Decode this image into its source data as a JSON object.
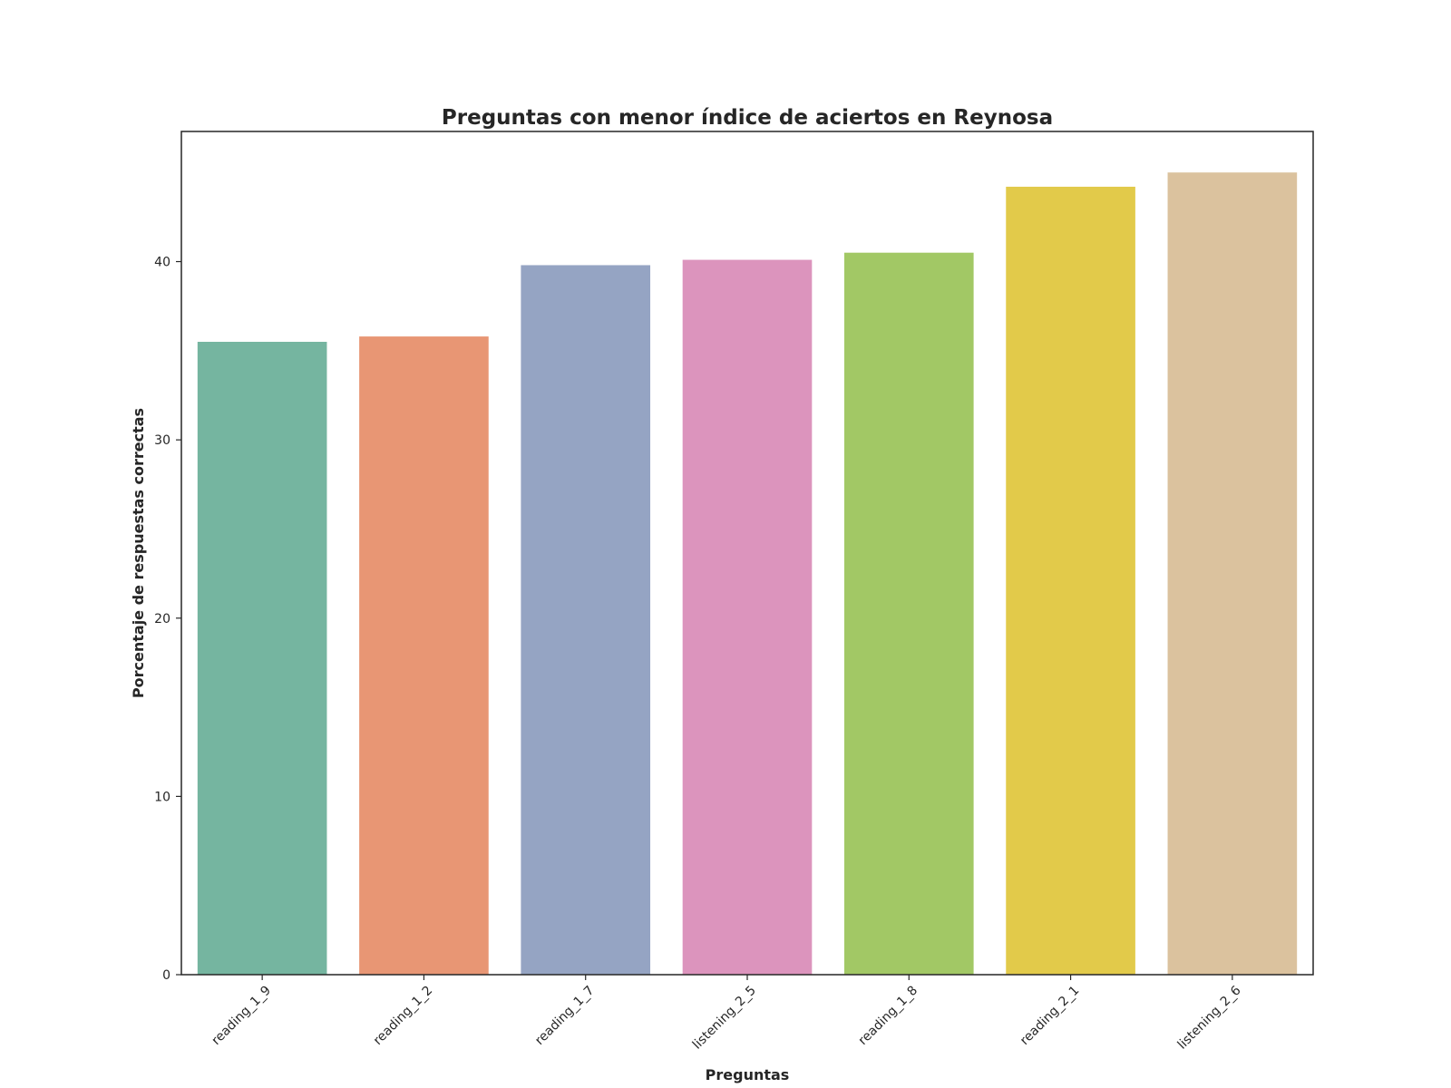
{
  "chart_data": {
    "type": "bar",
    "title": "Preguntas con menor índice de aciertos en Reynosa",
    "xlabel": "Preguntas",
    "ylabel": "Porcentaje de respuestas correctas",
    "categories": [
      "reading_1_9",
      "reading_1_2",
      "reading_1_7",
      "listening_2_5",
      "reading_1_8",
      "reading_2_1",
      "listening_2_6"
    ],
    "values": [
      35.5,
      35.8,
      39.8,
      40.1,
      40.5,
      44.2,
      45.0
    ],
    "colors": [
      "#75b5a0",
      "#e89674",
      "#95a4c3",
      "#dc94bd",
      "#a2c865",
      "#e2ca4a",
      "#dbc29e"
    ],
    "ylim": [
      0,
      47.3
    ],
    "yticks": [
      0,
      10,
      20,
      30,
      40
    ],
    "grid": false
  }
}
